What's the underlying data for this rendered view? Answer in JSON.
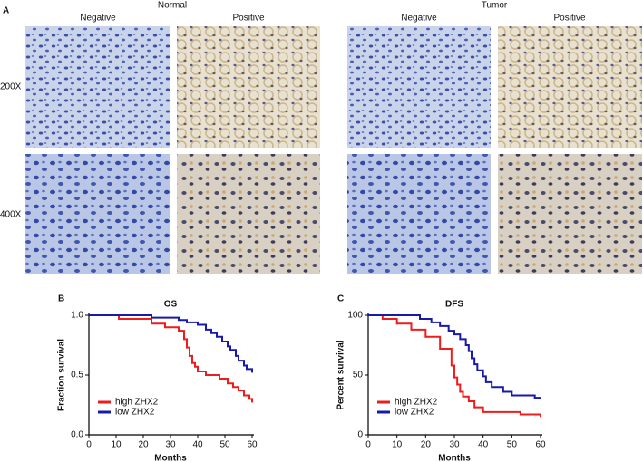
{
  "panel_a": {
    "label": "A",
    "groups": [
      "Normal",
      "Tumor"
    ],
    "columns": [
      "Negative",
      "Positive",
      "Negative",
      "Positive"
    ],
    "rows": [
      "200X",
      "400X"
    ]
  },
  "chart_data": [
    {
      "type": "step",
      "panel": "B",
      "title": "OS",
      "x_label": "Months",
      "y_label": "Fraction survival",
      "xlim": [
        0,
        60
      ],
      "xticks": [
        0,
        10,
        20,
        30,
        40,
        50,
        60
      ],
      "ylim": [
        0,
        1
      ],
      "yticks": [
        {
          "value": 0,
          "label": "0.0"
        },
        {
          "value": 0.5,
          "label": "0.5"
        },
        {
          "value": 1,
          "label": "1.0"
        }
      ],
      "legend": "lower left",
      "series": [
        {
          "name": "high ZHX2",
          "color": "#ee1c1c",
          "x": [
            0,
            11,
            23,
            28,
            33,
            35,
            36,
            37,
            38,
            39,
            40,
            43,
            48,
            51,
            53,
            55,
            57,
            59,
            60
          ],
          "values": [
            1,
            0.97,
            0.93,
            0.9,
            0.87,
            0.8,
            0.73,
            0.66,
            0.6,
            0.57,
            0.53,
            0.5,
            0.47,
            0.43,
            0.4,
            0.37,
            0.33,
            0.3,
            0.27
          ]
        },
        {
          "name": "low ZHX2",
          "color": "#1a1aa8",
          "x": [
            0,
            23,
            33,
            36,
            40,
            43,
            45,
            47,
            49,
            51,
            52,
            54,
            55,
            57,
            58,
            60
          ],
          "values": [
            1,
            0.98,
            0.96,
            0.94,
            0.92,
            0.88,
            0.85,
            0.82,
            0.78,
            0.74,
            0.71,
            0.66,
            0.62,
            0.58,
            0.55,
            0.52
          ]
        }
      ]
    },
    {
      "type": "step",
      "panel": "C",
      "title": "DFS",
      "x_label": "Months",
      "y_label": "Percent survival",
      "xlim": [
        0,
        60
      ],
      "xticks": [
        0,
        10,
        20,
        30,
        40,
        50,
        60
      ],
      "ylim": [
        0,
        100
      ],
      "yticks": [
        0,
        50,
        100
      ],
      "legend": "lower left",
      "series": [
        {
          "name": "high ZHX2",
          "color": "#ee1c1c",
          "x": [
            0,
            5,
            10,
            15,
            20,
            25,
            29,
            30,
            31,
            32,
            33,
            35,
            37,
            40,
            53,
            60
          ],
          "values": [
            100,
            97,
            93,
            88,
            82,
            72,
            58,
            48,
            42,
            36,
            32,
            28,
            23,
            19,
            17,
            15
          ]
        },
        {
          "name": "low ZHX2",
          "color": "#1a1aa8",
          "x": [
            0,
            18,
            22,
            25,
            28,
            30,
            32,
            34,
            35,
            36,
            37,
            38,
            40,
            41,
            43,
            47,
            50,
            58,
            60
          ],
          "values": [
            100,
            97,
            94,
            91,
            87,
            84,
            80,
            75,
            70,
            64,
            59,
            54,
            49,
            44,
            40,
            36,
            33,
            31,
            31
          ]
        }
      ]
    }
  ]
}
